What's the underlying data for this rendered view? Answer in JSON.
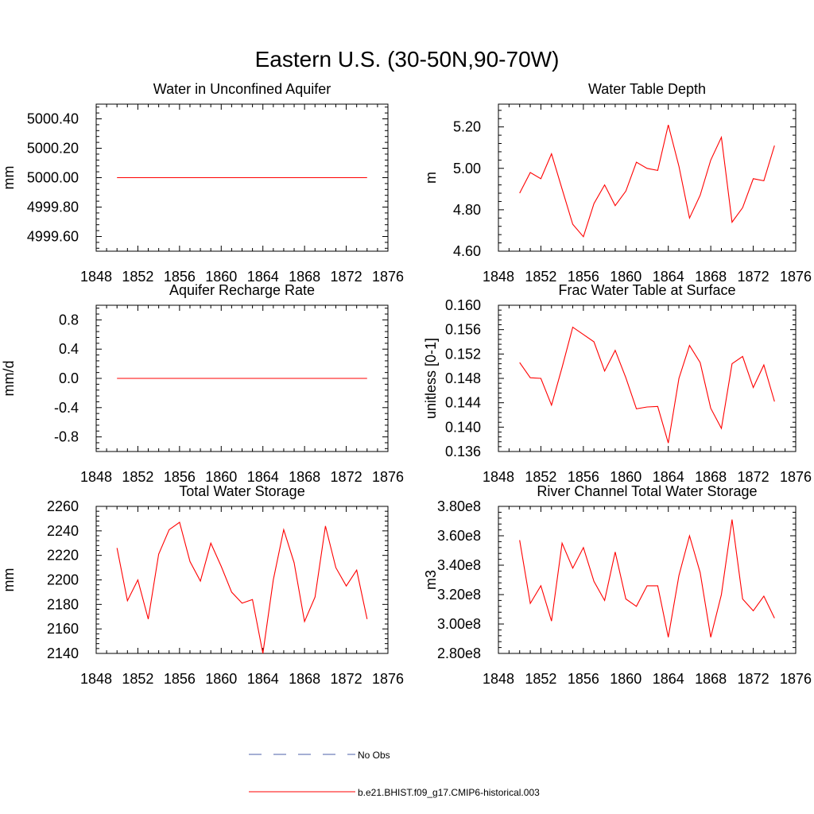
{
  "title": "Eastern U.S. (30-50N,90-70W)",
  "colors": {
    "model": "#ff0000",
    "obs": "#4b5fa8",
    "axis": "#000000"
  },
  "legend": {
    "placement": "bottom-center",
    "entries": [
      {
        "label": "No Obs",
        "style": "dashed",
        "color": "#4b5fa8"
      },
      {
        "label": "b.e21.BHIST.f09_g17.CMIP6-historical.003",
        "style": "solid",
        "color": "#ff0000"
      }
    ]
  },
  "chart_data": [
    {
      "type": "line",
      "title": "Water in Unconfined Aquifer",
      "ylabel": "mm",
      "xlim": [
        1848,
        1876
      ],
      "xticks": [
        1848,
        1852,
        1856,
        1860,
        1864,
        1868,
        1872,
        1876
      ],
      "ylim": [
        4999.5,
        5000.5
      ],
      "yticks": [
        4999.6,
        4999.8,
        5000.0,
        5000.2,
        5000.4
      ],
      "ytick_labels": [
        "4999.60",
        "4999.80",
        "5000.00",
        "5000.20",
        "5000.40"
      ],
      "x": [
        1850,
        1851,
        1852,
        1853,
        1854,
        1855,
        1856,
        1857,
        1858,
        1859,
        1860,
        1861,
        1862,
        1863,
        1864,
        1865,
        1866,
        1867,
        1868,
        1869,
        1870,
        1871,
        1872,
        1873,
        1874
      ],
      "series": [
        {
          "name": "b.e21.BHIST.f09_g17.CMIP6-historical.003",
          "values": [
            5000,
            5000,
            5000,
            5000,
            5000,
            5000,
            5000,
            5000,
            5000,
            5000,
            5000,
            5000,
            5000,
            5000,
            5000,
            5000,
            5000,
            5000,
            5000,
            5000,
            5000,
            5000,
            5000,
            5000,
            5000
          ]
        }
      ]
    },
    {
      "type": "line",
      "title": "Water Table Depth",
      "ylabel": "m",
      "xlim": [
        1848,
        1876
      ],
      "xticks": [
        1848,
        1852,
        1856,
        1860,
        1864,
        1868,
        1872,
        1876
      ],
      "ylim": [
        4.6,
        5.31
      ],
      "yticks": [
        4.6,
        4.8,
        5.0,
        5.2
      ],
      "ytick_labels": [
        "4.60",
        "4.80",
        "5.00",
        "5.20"
      ],
      "x": [
        1850,
        1851,
        1852,
        1853,
        1854,
        1855,
        1856,
        1857,
        1858,
        1859,
        1860,
        1861,
        1862,
        1863,
        1864,
        1865,
        1866,
        1867,
        1868,
        1869,
        1870,
        1871,
        1872,
        1873,
        1874
      ],
      "series": [
        {
          "name": "b.e21.BHIST.f09_g17.CMIP6-historical.003",
          "values": [
            4.88,
            4.98,
            4.95,
            5.07,
            4.9,
            4.73,
            4.67,
            4.83,
            4.92,
            4.82,
            4.89,
            5.03,
            5.0,
            4.99,
            5.21,
            5.01,
            4.76,
            4.87,
            5.04,
            5.15,
            4.74,
            4.81,
            4.95,
            4.94,
            5.11
          ]
        }
      ]
    },
    {
      "type": "line",
      "title": "Aquifer Recharge Rate",
      "ylabel": "mm/d",
      "xlim": [
        1848,
        1876
      ],
      "xticks": [
        1848,
        1852,
        1856,
        1860,
        1864,
        1868,
        1872,
        1876
      ],
      "ylim": [
        -1.0,
        1.0
      ],
      "yticks": [
        -0.8,
        -0.4,
        0.0,
        0.4,
        0.8
      ],
      "ytick_labels": [
        "-0.8",
        "-0.4",
        "0.0",
        "0.4",
        "0.8"
      ],
      "x": [
        1850,
        1851,
        1852,
        1853,
        1854,
        1855,
        1856,
        1857,
        1858,
        1859,
        1860,
        1861,
        1862,
        1863,
        1864,
        1865,
        1866,
        1867,
        1868,
        1869,
        1870,
        1871,
        1872,
        1873,
        1874
      ],
      "series": [
        {
          "name": "b.e21.BHIST.f09_g17.CMIP6-historical.003",
          "values": [
            0,
            0,
            0,
            0,
            0,
            0,
            0,
            0,
            0,
            0,
            0,
            0,
            0,
            0,
            0,
            0,
            0,
            0,
            0,
            0,
            0,
            0,
            0,
            0,
            0
          ]
        }
      ]
    },
    {
      "type": "line",
      "title": "Frac Water Table at Surface",
      "ylabel": "unitless [0-1]",
      "xlim": [
        1848,
        1876
      ],
      "xticks": [
        1848,
        1852,
        1856,
        1860,
        1864,
        1868,
        1872,
        1876
      ],
      "ylim": [
        0.136,
        0.16
      ],
      "yticks": [
        0.136,
        0.14,
        0.144,
        0.148,
        0.152,
        0.156,
        0.16
      ],
      "ytick_labels": [
        "0.136",
        "0.140",
        "0.144",
        "0.148",
        "0.152",
        "0.156",
        "0.160"
      ],
      "x": [
        1850,
        1851,
        1852,
        1853,
        1854,
        1855,
        1856,
        1857,
        1858,
        1859,
        1860,
        1861,
        1862,
        1863,
        1864,
        1865,
        1866,
        1867,
        1868,
        1869,
        1870,
        1871,
        1872,
        1873,
        1874
      ],
      "series": [
        {
          "name": "b.e21.BHIST.f09_g17.CMIP6-historical.003",
          "values": [
            0.1506,
            0.1481,
            0.148,
            0.1436,
            0.1498,
            0.1564,
            0.1552,
            0.154,
            0.1492,
            0.1526,
            0.1481,
            0.143,
            0.1433,
            0.1434,
            0.1374,
            0.148,
            0.1534,
            0.1506,
            0.1431,
            0.1398,
            0.1504,
            0.1516,
            0.1465,
            0.1502,
            0.1442
          ]
        }
      ]
    },
    {
      "type": "line",
      "title": "Total Water Storage",
      "ylabel": "mm",
      "xlim": [
        1848,
        1876
      ],
      "xticks": [
        1848,
        1852,
        1856,
        1860,
        1864,
        1868,
        1872,
        1876
      ],
      "ylim": [
        2140,
        2260
      ],
      "yticks": [
        2140,
        2160,
        2180,
        2200,
        2220,
        2240,
        2260
      ],
      "ytick_labels": [
        "2140",
        "2160",
        "2180",
        "2200",
        "2220",
        "2240",
        "2260"
      ],
      "x": [
        1850,
        1851,
        1852,
        1853,
        1854,
        1855,
        1856,
        1857,
        1858,
        1859,
        1860,
        1861,
        1862,
        1863,
        1864,
        1865,
        1866,
        1867,
        1868,
        1869,
        1870,
        1871,
        1872,
        1873,
        1874
      ],
      "series": [
        {
          "name": "b.e21.BHIST.f09_g17.CMIP6-historical.003",
          "values": [
            2226,
            2183,
            2200,
            2168,
            2221,
            2241,
            2247,
            2215,
            2199,
            2230,
            2211,
            2190,
            2181,
            2184,
            2140,
            2200,
            2241,
            2214,
            2166,
            2186,
            2244,
            2210,
            2195,
            2208,
            2168
          ]
        }
      ]
    },
    {
      "type": "line",
      "title": "River Channel Total Water Storage",
      "ylabel": "m3",
      "xlim": [
        1848,
        1876
      ],
      "xticks": [
        1848,
        1852,
        1856,
        1860,
        1864,
        1868,
        1872,
        1876
      ],
      "ylim": [
        280000000,
        380000000
      ],
      "yticks": [
        280000000,
        300000000,
        320000000,
        340000000,
        360000000,
        380000000
      ],
      "ytick_labels": [
        "2.80e8",
        "3.00e8",
        "3.20e8",
        "3.40e8",
        "3.60e8",
        "3.80e8"
      ],
      "x": [
        1850,
        1851,
        1852,
        1853,
        1854,
        1855,
        1856,
        1857,
        1858,
        1859,
        1860,
        1861,
        1862,
        1863,
        1864,
        1865,
        1866,
        1867,
        1868,
        1869,
        1870,
        1871,
        1872,
        1873,
        1874
      ],
      "series": [
        {
          "name": "b.e21.BHIST.f09_g17.CMIP6-historical.003",
          "values": [
            357000000,
            314000000,
            326000000,
            302000000,
            355000000,
            338000000,
            352000000,
            329000000,
            316000000,
            349000000,
            317000000,
            312000000,
            326000000,
            326000000,
            291000000,
            333000000,
            360000000,
            335000000,
            291000000,
            320000000,
            371000000,
            317000000,
            309000000,
            319000000,
            304000000
          ]
        }
      ]
    }
  ]
}
